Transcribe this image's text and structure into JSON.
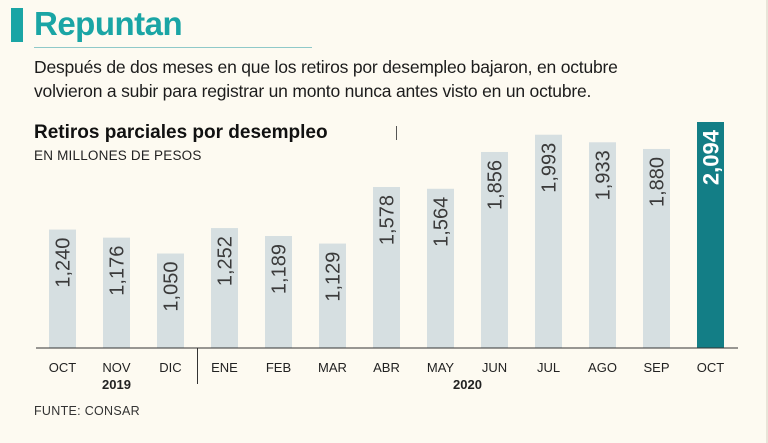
{
  "header": {
    "title": "Repuntan",
    "intro_line1": "Después de dos meses en que los retiros por desempleo bajaron, en octubre",
    "intro_line2": "volvieron a subir para registrar un monto nunca antes visto en un octubre."
  },
  "footer": {
    "source": "FUNTE: CONSAR"
  },
  "colors": {
    "accent": "#1aa5a5",
    "bar": "#d6dfe1",
    "highlight_bar": "#137e86",
    "background": "#fdfaf1"
  },
  "chart_data": {
    "type": "bar",
    "title": "Retiros parciales por desempleo",
    "subtitle": "EN MILLONES DE PESOS",
    "categories": [
      "OCT",
      "NOV",
      "DIC",
      "ENE",
      "FEB",
      "MAR",
      "ABR",
      "MAY",
      "JUN",
      "JUL",
      "AGO",
      "SEP",
      "OCT"
    ],
    "values": [
      1240,
      1176,
      1050,
      1252,
      1189,
      1129,
      1578,
      1564,
      1856,
      1993,
      1933,
      1880,
      2094
    ],
    "value_labels": [
      "1,240",
      "1,176",
      "1,050",
      "1,252",
      "1,189",
      "1,129",
      "1,578",
      "1,564",
      "1,856",
      "1,993",
      "1,933",
      "1,880",
      "2,094"
    ],
    "year_groups": [
      {
        "label": "2019",
        "start": 0,
        "end": 2
      },
      {
        "label": "2020",
        "start": 3,
        "end": 12
      }
    ],
    "highlight_index": 12,
    "ylim": [
      0,
      2094
    ]
  }
}
